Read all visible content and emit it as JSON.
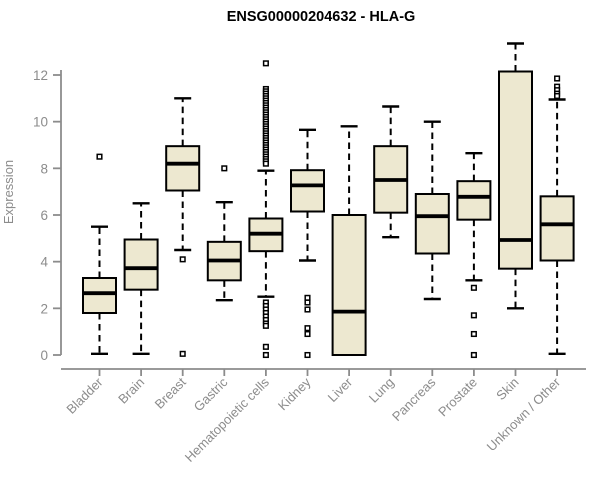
{
  "title": "ENSG00000204632 - HLA-G",
  "colors": {
    "box_fill": "#ede8d0",
    "box_stroke": "#000000",
    "median": "#000000",
    "axis": "#8c8c8c",
    "title": "#000000",
    "background": "#ffffff"
  },
  "chart_data": {
    "type": "boxplot",
    "title": "ENSG00000204632 - HLA-G",
    "xlabel": "",
    "ylabel": "Expression",
    "ylim": [
      0,
      12
    ],
    "yticks": [
      0,
      2,
      4,
      6,
      8,
      10,
      12
    ],
    "grid": "off",
    "legend": "none",
    "categories": [
      "Bladder",
      "Brain",
      "Breast",
      "Gastric",
      "Hematopoietic cells",
      "Kidney",
      "Liver",
      "Lung",
      "Pancreas",
      "Prostate",
      "Skin",
      "Unknown / Other"
    ],
    "series": [
      {
        "name": "Bladder",
        "whisker_low": 0.05,
        "q1": 1.8,
        "median": 2.65,
        "q3": 3.3,
        "whisker_high": 5.5,
        "outliers": [
          8.5
        ]
      },
      {
        "name": "Brain",
        "whisker_low": 0.05,
        "q1": 2.8,
        "median": 3.72,
        "q3": 4.95,
        "whisker_high": 6.5,
        "outliers": []
      },
      {
        "name": "Breast",
        "whisker_low": 4.5,
        "q1": 7.05,
        "median": 8.2,
        "q3": 8.95,
        "whisker_high": 11.0,
        "outliers": [
          4.1,
          0.05
        ]
      },
      {
        "name": "Gastric",
        "whisker_low": 2.35,
        "q1": 3.2,
        "median": 4.05,
        "q3": 4.85,
        "whisker_high": 6.55,
        "outliers": [
          8.0
        ]
      },
      {
        "name": "Hematopoietic cells",
        "whisker_low": 2.5,
        "q1": 4.45,
        "median": 5.2,
        "q3": 5.85,
        "whisker_high": 7.9,
        "outliers": [
          12.5,
          11.4,
          11.3,
          11.2,
          11.1,
          11.0,
          10.9,
          10.8,
          10.7,
          10.6,
          10.5,
          10.4,
          10.3,
          10.2,
          10.1,
          10.0,
          9.9,
          9.8,
          9.7,
          9.6,
          9.5,
          9.4,
          9.3,
          9.2,
          9.1,
          9.0,
          8.9,
          8.8,
          8.7,
          8.6,
          8.5,
          8.4,
          8.3,
          8.2,
          2.25,
          2.1,
          1.95,
          1.8,
          1.65,
          1.5,
          1.35,
          1.25,
          0.35,
          0.0
        ]
      },
      {
        "name": "Kidney",
        "whisker_low": 4.05,
        "q1": 6.15,
        "median": 7.27,
        "q3": 7.92,
        "whisker_high": 9.65,
        "outliers": [
          2.45,
          2.25,
          1.95,
          1.15,
          0.9,
          0.0
        ]
      },
      {
        "name": "Liver",
        "whisker_low": 0.0,
        "q1": 0.0,
        "median": 1.86,
        "q3": 6.0,
        "whisker_high": 9.8,
        "outliers": []
      },
      {
        "name": "Lung",
        "whisker_low": 5.05,
        "q1": 6.1,
        "median": 7.5,
        "q3": 8.95,
        "whisker_high": 10.65,
        "outliers": []
      },
      {
        "name": "Pancreas",
        "whisker_low": 2.4,
        "q1": 4.35,
        "median": 5.95,
        "q3": 6.9,
        "whisker_high": 10.0,
        "outliers": []
      },
      {
        "name": "Prostate",
        "whisker_low": 3.2,
        "q1": 5.8,
        "median": 6.78,
        "q3": 7.45,
        "whisker_high": 8.65,
        "outliers": [
          2.88,
          1.7,
          0.9,
          0.0
        ]
      },
      {
        "name": "Skin",
        "whisker_low": 2.0,
        "q1": 3.7,
        "median": 4.93,
        "q3": 12.15,
        "whisker_high": 13.35,
        "outliers": []
      },
      {
        "name": "Unknown / Other",
        "whisker_low": 0.05,
        "q1": 4.05,
        "median": 5.6,
        "q3": 6.8,
        "whisker_high": 10.95,
        "outliers": [
          11.85,
          11.5,
          11.35,
          11.2,
          11.1
        ]
      }
    ]
  }
}
